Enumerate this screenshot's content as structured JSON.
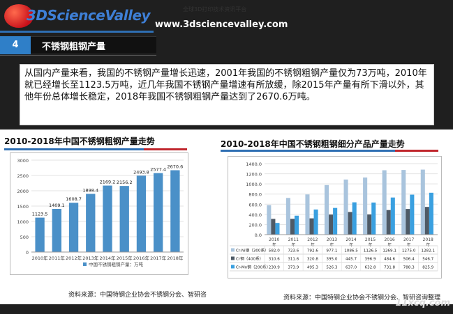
{
  "header": {
    "logo_text": "3DScienceValley",
    "site_url": "www.3dsciencevalley.com",
    "faint_note": "全球3D打印技术资讯平台"
  },
  "section": {
    "number": "4",
    "title": "不锈钢粗钢产量"
  },
  "intro": {
    "text": "从国内产量来看，我国的不锈钢产量增长迅速，2001年我国的不锈钢粗钢产量仅为73万吨，2010年就已经增长至1123.5万吨，近几年我国不锈钢产量增速有所放缓，除2015年产量有所下滑以外，其他年份总体增长稳定，2018年我国不锈钢粗钢产量达到了2670.6万吨。"
  },
  "colors": {
    "bar_main": "#4a90c8",
    "cr_ni": "#a9c4dd",
    "cr": "#4e5a66",
    "cr_mn": "#3aa0e0",
    "accent_red": "#c0262d",
    "accent_blue": "#2f6fb3"
  },
  "chart_data": [
    {
      "type": "bar",
      "title": "2010-2018年中国不锈钢粗钢产量走势",
      "categories": [
        "2010年",
        "2011年",
        "2012年",
        "2013年",
        "2014年",
        "2015年",
        "2016年",
        "2017年",
        "2018年"
      ],
      "values": [
        1123.5,
        1409.1,
        1608.7,
        1898.4,
        2169.2,
        2156.2,
        2493.8,
        2577.4,
        2670.6
      ],
      "value_labels": [
        "1123.5",
        "1409.1",
        "1608.7",
        "1898.4",
        "2169.2",
        "2156.2",
        "2493.8",
        "2577.4",
        "2670.6"
      ],
      "yticks": [
        "0",
        "500",
        "1000",
        "1500",
        "2000",
        "2500",
        "3000"
      ],
      "ylim": [
        0,
        3000
      ],
      "legend": "中国不锈钢粗钢产量：万吨",
      "grid": true
    },
    {
      "type": "bar",
      "title": "2010-2018年中国不锈钢粗钢细分产品产量走势",
      "categories": [
        "2010年",
        "2011年",
        "2012年",
        "2013年",
        "2014年",
        "2015年",
        "2016年",
        "2017年",
        "2018年"
      ],
      "category_labels_top": [
        "2010",
        "2011",
        "2012",
        "2013",
        "2014",
        "2015",
        "2016",
        "2017",
        "2018"
      ],
      "category_labels_bottom": [
        "年",
        "年",
        "年",
        "年",
        "年",
        "年",
        "年",
        "年",
        "年"
      ],
      "yticks": [
        "0.0",
        "200.0",
        "400.0",
        "600.0",
        "800.0",
        "1000.0",
        "1200.0",
        "1400.0"
      ],
      "ylim": [
        0,
        1400
      ],
      "grid": true,
      "series": [
        {
          "name": "Cr-Ni钢（300系）",
          "values": [
            582.0,
            723.6,
            792.6,
            977.1,
            1086.5,
            1126.5,
            1269.1,
            1275.0,
            1282.1
          ],
          "labels": [
            "582.0",
            "723.6",
            "792.6",
            "977.1",
            "1086.5",
            "1126.5",
            "1269.1",
            "1275.0",
            "1282.1"
          ]
        },
        {
          "name": "Cr钢（400系）",
          "values": [
            310.6,
            311.6,
            320.8,
            395.0,
            445.7,
            396.9,
            484.6,
            506.4,
            546.7
          ],
          "labels": [
            "310.6",
            "311.6",
            "320.8",
            "395.0",
            "445.7",
            "396.9",
            "484.6",
            "506.4",
            "546.7"
          ]
        },
        {
          "name": "Cr-Mn钢（200系）",
          "values": [
            230.9,
            373.9,
            495.3,
            526.3,
            637.0,
            632.8,
            731.8,
            788.3,
            825.9
          ],
          "labels": [
            "230.9",
            "373.9",
            "495.3",
            "526.3",
            "637.0",
            "632.8",
            "731.8",
            "788.3",
            "825.9"
          ]
        }
      ]
    }
  ],
  "sources": {
    "left": "资料来源：中国特钢企业协会不锈钢分会、智研咨",
    "right": "资料来源：中国特钢企业协会不锈钢分会、智研咨询整理"
  },
  "watermark": "11xcq.com"
}
